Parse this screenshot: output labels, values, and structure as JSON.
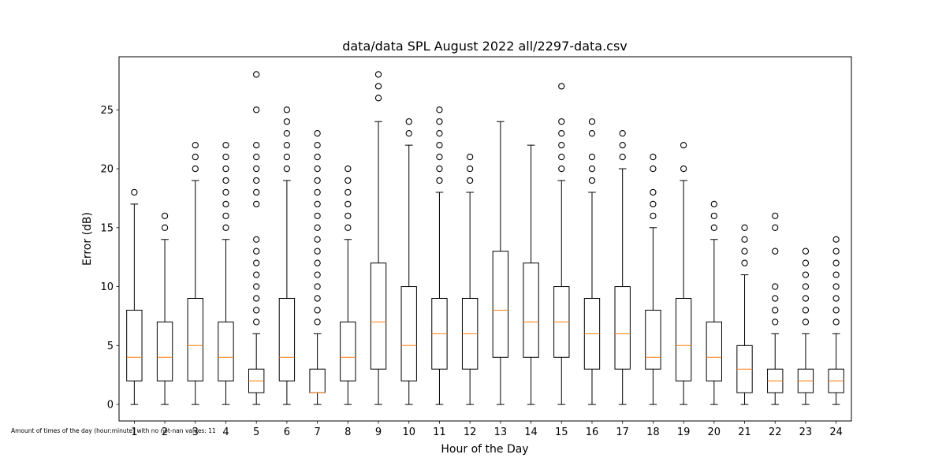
{
  "chart_data": {
    "type": "box",
    "title": "data/data SPL August 2022 all/2297-data.csv",
    "xlabel": "Hour of the Day",
    "ylabel": "Error (dB)",
    "footnote": "Amount of times of the day (hour:minute) with no not-nan values: 11",
    "categories": [
      "1",
      "2",
      "3",
      "4",
      "5",
      "6",
      "7",
      "8",
      "9",
      "10",
      "11",
      "12",
      "13",
      "14",
      "15",
      "16",
      "17",
      "18",
      "19",
      "20",
      "21",
      "22",
      "23",
      "24"
    ],
    "xlim": [
      0.5,
      24.5
    ],
    "ylim": [
      -1.4,
      29.5
    ],
    "yticks": [
      0,
      5,
      10,
      15,
      20,
      25
    ],
    "grid": false,
    "colors": {
      "box": "#000000",
      "median": "#ff7f0e",
      "flier": "#000000"
    },
    "boxes": [
      {
        "label": "1",
        "whislo": 0,
        "q1": 2,
        "med": 4,
        "q3": 8,
        "whishi": 17,
        "fliers": [
          18
        ]
      },
      {
        "label": "2",
        "whislo": 0,
        "q1": 2,
        "med": 4,
        "q3": 7,
        "whishi": 14,
        "fliers": [
          15,
          16
        ]
      },
      {
        "label": "3",
        "whislo": 0,
        "q1": 2,
        "med": 5,
        "q3": 9,
        "whishi": 19,
        "fliers": [
          20,
          21,
          22
        ]
      },
      {
        "label": "4",
        "whislo": 0,
        "q1": 2,
        "med": 4,
        "q3": 7,
        "whishi": 14,
        "fliers": [
          15,
          16,
          17,
          18,
          19,
          20,
          21,
          22
        ]
      },
      {
        "label": "5",
        "whislo": 0,
        "q1": 1,
        "med": 2,
        "q3": 3,
        "whishi": 6,
        "fliers": [
          7,
          8,
          9,
          10,
          11,
          12,
          13,
          14,
          17,
          18,
          19,
          20,
          21,
          22,
          25,
          28
        ]
      },
      {
        "label": "6",
        "whislo": 0,
        "q1": 2,
        "med": 4,
        "q3": 9,
        "whishi": 19,
        "fliers": [
          20,
          21,
          22,
          23,
          24,
          25
        ]
      },
      {
        "label": "7",
        "whislo": 0,
        "q1": 1,
        "med": 1,
        "q3": 3,
        "whishi": 6,
        "fliers": [
          7,
          8,
          9,
          10,
          11,
          12,
          13,
          14,
          15,
          16,
          17,
          18,
          19,
          20,
          21,
          22,
          23
        ]
      },
      {
        "label": "8",
        "whislo": 0,
        "q1": 2,
        "med": 4,
        "q3": 7,
        "whishi": 14,
        "fliers": [
          15,
          16,
          17,
          18,
          19,
          20
        ]
      },
      {
        "label": "9",
        "whislo": 0,
        "q1": 3,
        "med": 7,
        "q3": 12,
        "whishi": 24,
        "fliers": [
          26,
          27,
          28
        ]
      },
      {
        "label": "10",
        "whislo": 0,
        "q1": 2,
        "med": 5,
        "q3": 10,
        "whishi": 22,
        "fliers": [
          23,
          24
        ]
      },
      {
        "label": "11",
        "whislo": 0,
        "q1": 3,
        "med": 6,
        "q3": 9,
        "whishi": 18,
        "fliers": [
          19,
          20,
          21,
          22,
          23,
          24,
          25
        ]
      },
      {
        "label": "12",
        "whislo": 0,
        "q1": 3,
        "med": 6,
        "q3": 9,
        "whishi": 18,
        "fliers": [
          19,
          20,
          21
        ]
      },
      {
        "label": "13",
        "whislo": 0,
        "q1": 4,
        "med": 8,
        "q3": 13,
        "whishi": 24,
        "fliers": []
      },
      {
        "label": "14",
        "whislo": 0,
        "q1": 4,
        "med": 7,
        "q3": 12,
        "whishi": 22,
        "fliers": []
      },
      {
        "label": "15",
        "whislo": 0,
        "q1": 4,
        "med": 7,
        "q3": 10,
        "whishi": 19,
        "fliers": [
          20,
          21,
          22,
          23,
          24,
          27
        ]
      },
      {
        "label": "16",
        "whislo": 0,
        "q1": 3,
        "med": 6,
        "q3": 9,
        "whishi": 18,
        "fliers": [
          19,
          20,
          21,
          23,
          24
        ]
      },
      {
        "label": "17",
        "whislo": 0,
        "q1": 3,
        "med": 6,
        "q3": 10,
        "whishi": 20,
        "fliers": [
          21,
          22,
          23
        ]
      },
      {
        "label": "18",
        "whislo": 0,
        "q1": 3,
        "med": 4,
        "q3": 8,
        "whishi": 15,
        "fliers": [
          16,
          17,
          18,
          20,
          21
        ]
      },
      {
        "label": "19",
        "whislo": 0,
        "q1": 2,
        "med": 5,
        "q3": 9,
        "whishi": 19,
        "fliers": [
          20,
          22
        ]
      },
      {
        "label": "20",
        "whislo": 0,
        "q1": 2,
        "med": 4,
        "q3": 7,
        "whishi": 14,
        "fliers": [
          15,
          16,
          17
        ]
      },
      {
        "label": "21",
        "whislo": 0,
        "q1": 1,
        "med": 3,
        "q3": 5,
        "whishi": 11,
        "fliers": [
          12,
          13,
          14,
          15
        ]
      },
      {
        "label": "22",
        "whislo": 0,
        "q1": 1,
        "med": 2,
        "q3": 3,
        "whishi": 6,
        "fliers": [
          7,
          8,
          9,
          10,
          13,
          15,
          16
        ]
      },
      {
        "label": "23",
        "whislo": 0,
        "q1": 1,
        "med": 2,
        "q3": 3,
        "whishi": 6,
        "fliers": [
          7,
          8,
          9,
          10,
          11,
          12,
          13
        ]
      },
      {
        "label": "24",
        "whislo": 0,
        "q1": 1,
        "med": 2,
        "q3": 3,
        "whishi": 6,
        "fliers": [
          7,
          8,
          9,
          10,
          11,
          12,
          13,
          14
        ]
      }
    ]
  }
}
